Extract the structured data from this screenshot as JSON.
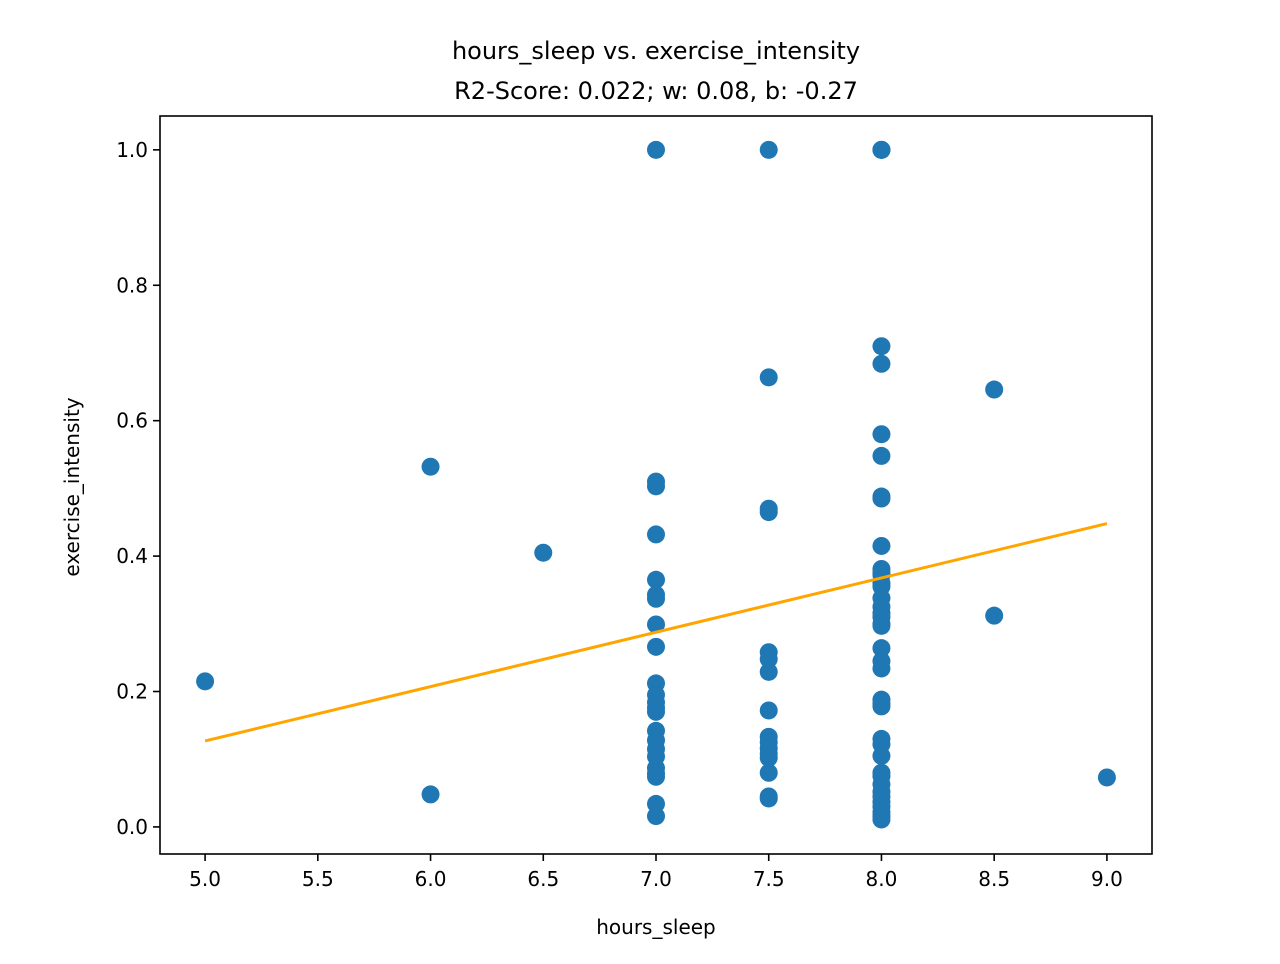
{
  "chart_data": {
    "type": "scatter",
    "title": "hours_sleep vs. exercise_intensity",
    "subtitle": "R2-Score: 0.022; w: 0.08, b: -0.27",
    "xlabel": "hours_sleep",
    "ylabel": "exercise_intensity",
    "xlim": [
      4.8,
      9.2
    ],
    "ylim": [
      -0.04,
      1.05
    ],
    "xticks": [
      5.0,
      5.5,
      6.0,
      6.5,
      7.0,
      7.5,
      8.0,
      8.5,
      9.0
    ],
    "xtick_labels": [
      "5.0",
      "5.5",
      "6.0",
      "6.5",
      "7.0",
      "7.5",
      "8.0",
      "8.5",
      "9.0"
    ],
    "yticks": [
      0.0,
      0.2,
      0.4,
      0.6,
      0.8,
      1.0
    ],
    "ytick_labels": [
      "0.0",
      "0.2",
      "0.4",
      "0.6",
      "0.8",
      "1.0"
    ],
    "grid": false,
    "colors": {
      "points": "#1f77b4",
      "fit_line": "#ffa500"
    },
    "series": [
      {
        "type": "scatter",
        "x": [
          5.0,
          6.0,
          6.0,
          6.5,
          7.0,
          7.0,
          7.0,
          7.0,
          7.0,
          7.0,
          7.0,
          7.0,
          7.0,
          7.0,
          7.0,
          7.0,
          7.0,
          7.0,
          7.0,
          7.0,
          7.0,
          7.0,
          7.0,
          7.0,
          7.0,
          7.0,
          7.0,
          7.5,
          7.5,
          7.5,
          7.5,
          7.5,
          7.5,
          7.5,
          7.5,
          7.5,
          7.5,
          7.5,
          7.5,
          7.5,
          7.5,
          7.5,
          7.5,
          8.0,
          8.0,
          8.0,
          8.0,
          8.0,
          8.0,
          8.0,
          8.0,
          8.0,
          8.0,
          8.0,
          8.0,
          8.0,
          8.0,
          8.0,
          8.0,
          8.0,
          8.0,
          8.0,
          8.0,
          8.0,
          8.0,
          8.0,
          8.0,
          8.0,
          8.0,
          8.0,
          8.0,
          8.0,
          8.0,
          8.0,
          8.0,
          8.0,
          8.0,
          8.0,
          8.0,
          8.0,
          8.0,
          8.0,
          8.0,
          8.5,
          8.5,
          9.0
        ],
        "y": [
          0.215,
          0.532,
          0.048,
          0.405,
          1.0,
          0.51,
          0.503,
          0.432,
          0.365,
          0.343,
          0.337,
          0.299,
          0.266,
          0.212,
          0.195,
          0.176,
          0.17,
          0.142,
          0.128,
          0.115,
          0.104,
          0.087,
          0.079,
          0.074,
          0.034,
          0.016,
          0.184,
          1.0,
          0.664,
          0.47,
          0.465,
          0.258,
          0.248,
          0.229,
          0.172,
          0.133,
          0.116,
          0.102,
          0.08,
          0.045,
          0.042,
          0.108,
          0.125,
          1.0,
          1.0,
          1.0,
          0.71,
          0.684,
          0.58,
          0.548,
          0.488,
          0.485,
          0.415,
          0.381,
          0.375,
          0.36,
          0.355,
          0.338,
          0.325,
          0.316,
          0.31,
          0.3,
          0.297,
          0.264,
          0.245,
          0.234,
          0.188,
          0.182,
          0.178,
          0.13,
          0.122,
          0.105,
          0.08,
          0.075,
          0.063,
          0.052,
          0.045,
          0.037,
          0.03,
          0.022,
          0.016,
          0.011,
          0.372,
          0.646,
          0.312,
          0.073
        ]
      },
      {
        "type": "line",
        "x": [
          5.0,
          9.0
        ],
        "y": [
          0.127,
          0.448
        ]
      }
    ]
  }
}
